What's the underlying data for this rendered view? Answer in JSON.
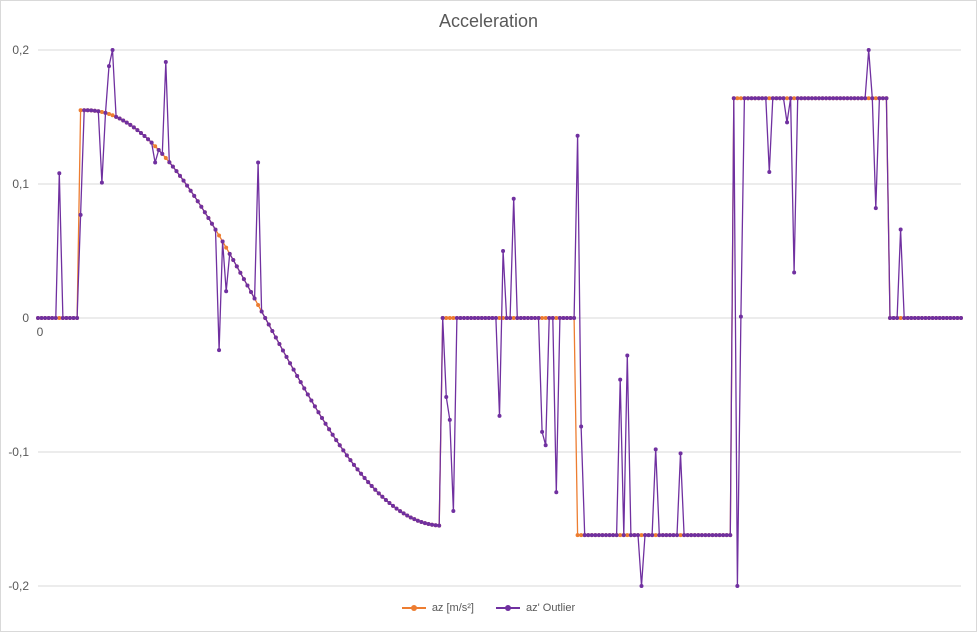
{
  "chart_data": {
    "type": "line",
    "title": "Acceleration",
    "xlabel": "",
    "ylabel": "",
    "ylim": [
      -0.2,
      0.2
    ],
    "y_ticks": [
      "0,2",
      "0,1",
      "0",
      "-0,1",
      "-0,2"
    ],
    "x_tick_labels": [
      "0"
    ],
    "grid": "horizontal",
    "legend_position": "bottom",
    "series": [
      {
        "name": "az [m/s²]",
        "color": "#ed7d31",
        "segments": [
          {
            "from": 0,
            "to": 6,
            "kind": "const",
            "value": 0
          },
          {
            "from": 6,
            "to": 7,
            "kind": "const",
            "value": 0.155
          },
          {
            "from": 7,
            "to": 57,
            "kind": "cosine",
            "amplitude": 0.155
          },
          {
            "from": 57,
            "to": 76,
            "kind": "const",
            "value": 0
          },
          {
            "from": 76,
            "to": 98,
            "kind": "const",
            "value": -0.162
          },
          {
            "from": 98,
            "to": 120,
            "kind": "const",
            "value": 0.164
          },
          {
            "from": 120,
            "to": 130,
            "kind": "const",
            "value": 0
          }
        ]
      },
      {
        "name": "az' Outlier",
        "color": "#7030a0",
        "base": "az [m/s²]",
        "outliers": [
          [
            3,
            0.108
          ],
          [
            6,
            0.077
          ],
          [
            9,
            0.101
          ],
          [
            10,
            0.188
          ],
          [
            10.5,
            0.205
          ],
          [
            16.5,
            0.116
          ],
          [
            18,
            0.191
          ],
          [
            25.5,
            -0.024
          ],
          [
            26.5,
            0.02
          ],
          [
            31,
            0.116
          ],
          [
            57.5,
            -0.059
          ],
          [
            58,
            -0.076
          ],
          [
            58.5,
            -0.144
          ],
          [
            65,
            -0.073
          ],
          [
            65.5,
            0.05
          ],
          [
            67,
            0.089
          ],
          [
            71,
            -0.085
          ],
          [
            71.5,
            -0.095
          ],
          [
            73,
            -0.13
          ],
          [
            76,
            0.136
          ],
          [
            76.5,
            -0.081
          ],
          [
            82,
            -0.046
          ],
          [
            83,
            -0.028
          ],
          [
            85,
            -0.205
          ],
          [
            87,
            -0.098
          ],
          [
            90.5,
            -0.101
          ],
          [
            98.5,
            -0.205
          ],
          [
            99,
            0.001
          ],
          [
            103,
            0.109
          ],
          [
            105.5,
            0.146
          ],
          [
            106.5,
            0.034
          ],
          [
            117,
            0.205
          ],
          [
            118,
            0.082
          ],
          [
            121.5,
            0.066
          ]
        ]
      }
    ]
  }
}
